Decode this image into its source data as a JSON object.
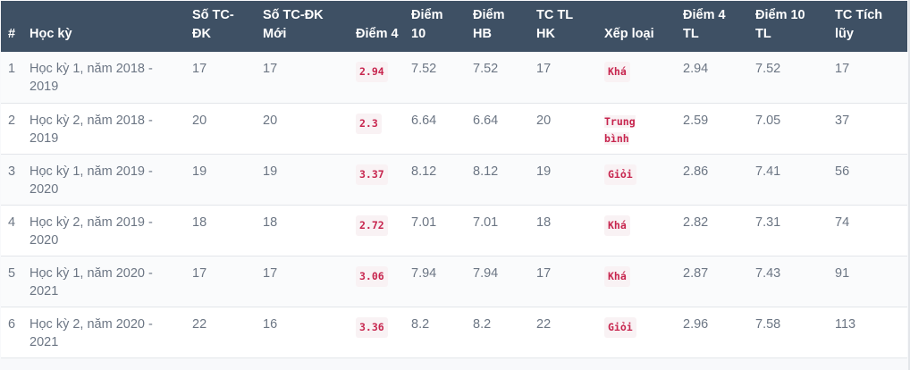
{
  "table": {
    "headers": [
      "#",
      "Học kỳ",
      "Số TC-ĐK",
      "Số TC-ĐK Mới",
      "Điểm 4",
      "Điểm 10",
      "Điểm HB",
      "TC TL HK",
      "Xếp loại",
      "Điểm 4 TL",
      "Điểm 10 TL",
      "TC Tích lũy"
    ],
    "rows": [
      {
        "num": "1",
        "hoc_ky": "Học kỳ 1, năm 2018 - 2019",
        "so_tc_dk": "17",
        "so_tc_dk_moi": "17",
        "diem4": "2.94",
        "diem10": "7.52",
        "diem_hb": "7.52",
        "tc_tl_hk": "17",
        "xep_loai": "Khá",
        "diem4_tl": "2.94",
        "diem10_tl": "7.52",
        "tc_tich_luy": "17"
      },
      {
        "num": "2",
        "hoc_ky": "Học kỳ 2, năm 2018 - 2019",
        "so_tc_dk": "20",
        "so_tc_dk_moi": "20",
        "diem4": "2.3",
        "diem10": "6.64",
        "diem_hb": "6.64",
        "tc_tl_hk": "20",
        "xep_loai": "Trung bình",
        "diem4_tl": "2.59",
        "diem10_tl": "7.05",
        "tc_tich_luy": "37"
      },
      {
        "num": "3",
        "hoc_ky": "Học kỳ 1, năm 2019 - 2020",
        "so_tc_dk": "19",
        "so_tc_dk_moi": "19",
        "diem4": "3.37",
        "diem10": "8.12",
        "diem_hb": "8.12",
        "tc_tl_hk": "19",
        "xep_loai": "Giỏi",
        "diem4_tl": "2.86",
        "diem10_tl": "7.41",
        "tc_tich_luy": "56"
      },
      {
        "num": "4",
        "hoc_ky": "Học kỳ 2, năm 2019 - 2020",
        "so_tc_dk": "18",
        "so_tc_dk_moi": "18",
        "diem4": "2.72",
        "diem10": "7.01",
        "diem_hb": "7.01",
        "tc_tl_hk": "18",
        "xep_loai": "Khá",
        "diem4_tl": "2.82",
        "diem10_tl": "7.31",
        "tc_tich_luy": "74"
      },
      {
        "num": "5",
        "hoc_ky": "Học kỳ 1, năm 2020 - 2021",
        "so_tc_dk": "17",
        "so_tc_dk_moi": "17",
        "diem4": "3.06",
        "diem10": "7.94",
        "diem_hb": "7.94",
        "tc_tl_hk": "17",
        "xep_loai": "Khá",
        "diem4_tl": "2.87",
        "diem10_tl": "7.43",
        "tc_tich_luy": "91"
      },
      {
        "num": "6",
        "hoc_ky": "Học kỳ 2, năm 2020 - 2021",
        "so_tc_dk": "22",
        "so_tc_dk_moi": "16",
        "diem4": "3.36",
        "diem10": "8.2",
        "diem_hb": "8.2",
        "tc_tl_hk": "22",
        "xep_loai": "Giỏi",
        "diem4_tl": "2.96",
        "diem10_tl": "7.58",
        "tc_tich_luy": "113"
      }
    ]
  },
  "colors": {
    "header_bg": "#3e5064",
    "header_text": "#ffffff",
    "cell_text": "#6c7684",
    "badge_text": "#c7254e",
    "badge_bg": "#f9f2f4"
  }
}
